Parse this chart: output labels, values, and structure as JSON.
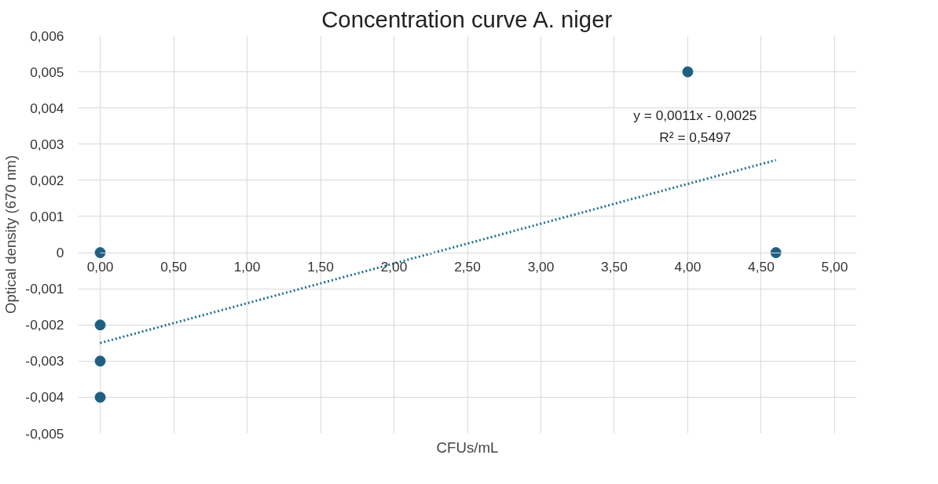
{
  "chart_data": {
    "type": "scatter",
    "title": "Concentration curve A. niger",
    "xlabel": "CFUs/mL",
    "ylabel": "Optical density (670 nm)",
    "xlim": [
      0,
      5
    ],
    "ylim": [
      -0.005,
      0.006
    ],
    "xticks": [
      {
        "value": 0,
        "label": "0,00"
      },
      {
        "value": 0.5,
        "label": "0,50"
      },
      {
        "value": 1,
        "label": "1,00"
      },
      {
        "value": 1.5,
        "label": "1,50"
      },
      {
        "value": 2,
        "label": "2,00"
      },
      {
        "value": 2.5,
        "label": "2,50"
      },
      {
        "value": 3,
        "label": "3,00"
      },
      {
        "value": 3.5,
        "label": "3,50"
      },
      {
        "value": 4,
        "label": "4,00"
      },
      {
        "value": 4.5,
        "label": "4,50"
      },
      {
        "value": 5,
        "label": "5,00"
      }
    ],
    "yticks": [
      {
        "value": -0.005,
        "label": "-0,005"
      },
      {
        "value": -0.004,
        "label": "-0,004"
      },
      {
        "value": -0.003,
        "label": "-0,003"
      },
      {
        "value": -0.002,
        "label": "-0,002"
      },
      {
        "value": -0.001,
        "label": "-0,001"
      },
      {
        "value": 0,
        "label": "0"
      },
      {
        "value": 0.001,
        "label": "0,001"
      },
      {
        "value": 0.002,
        "label": "0,002"
      },
      {
        "value": 0.003,
        "label": "0,003"
      },
      {
        "value": 0.004,
        "label": "0,004"
      },
      {
        "value": 0.005,
        "label": "0,005"
      },
      {
        "value": 0.006,
        "label": "0,006"
      }
    ],
    "grid": true,
    "marker": "circle",
    "series": [
      {
        "color": "#1f5f82",
        "x": [
          0,
          0,
          0,
          0,
          4,
          4.6
        ],
        "values": [
          0,
          -0.002,
          -0.003,
          -0.004,
          0.005,
          0
        ]
      },
      {
        "type": "line",
        "color": "#1f6f8f",
        "line_style": "dotted",
        "marker": "none",
        "x": [
          0,
          4.6
        ],
        "values": [
          -0.0025,
          0.00256
        ]
      }
    ],
    "annotations": [
      "y = 0,0011x - 0,0025",
      "R² = 0,5497"
    ]
  }
}
